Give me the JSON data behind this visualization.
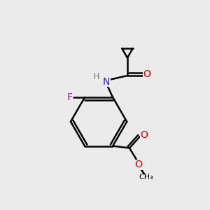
{
  "bg_color": "#ebebeb",
  "bond_color": "#000000",
  "bond_width": 1.8,
  "figsize": [
    3.0,
    3.0
  ],
  "dpi": 100,
  "atom_colors": {
    "N": "#2020cc",
    "O": "#cc0000",
    "F": "#cc00cc",
    "H": "#777777",
    "C": "#000000"
  },
  "xlim": [
    0,
    10
  ],
  "ylim": [
    0,
    10
  ]
}
